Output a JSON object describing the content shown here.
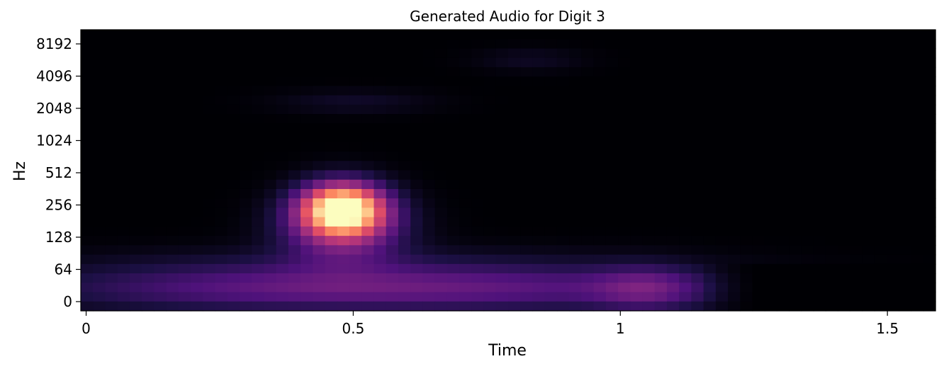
{
  "chart_data": {
    "type": "heatmap",
    "title": "Generated Audio for Digit 3",
    "xlabel": "Time",
    "ylabel": "Hz",
    "x_scale": "linear",
    "y_scale": "log-like (mel)",
    "xlim": [
      -0.01,
      1.59
    ],
    "x_ticks": [
      {
        "value": 0,
        "label": "0"
      },
      {
        "value": 0.5,
        "label": "0.5"
      },
      {
        "value": 1,
        "label": "1"
      },
      {
        "value": 1.5,
        "label": "1.5"
      }
    ],
    "y_ticks": [
      "0",
      "64",
      "128",
      "256",
      "512",
      "1024",
      "2048",
      "4096",
      "8192"
    ],
    "colormap": "magma",
    "grid": false,
    "legend": "none",
    "blobs": [
      {
        "t": 0.48,
        "band": 2.9,
        "st": 0.055,
        "sb": 0.55,
        "amp": 1.0
      },
      {
        "t": 0.48,
        "band": 2.2,
        "st": 0.08,
        "sb": 0.7,
        "amp": 0.35
      },
      {
        "t": 0.3,
        "band": 0.4,
        "st": 0.3,
        "sb": 0.5,
        "amp": 0.22
      },
      {
        "t": 0.8,
        "band": 0.4,
        "st": 0.3,
        "sb": 0.5,
        "amp": 0.22
      },
      {
        "t": 1.05,
        "band": 0.4,
        "st": 0.07,
        "sb": 0.5,
        "amp": 0.2
      },
      {
        "t": 0.5,
        "band": 1.2,
        "st": 0.35,
        "sb": 0.4,
        "amp": 0.07
      },
      {
        "t": 0.5,
        "band": 6.2,
        "st": 0.1,
        "sb": 0.25,
        "amp": 0.07
      },
      {
        "t": 0.83,
        "band": 7.5,
        "st": 0.07,
        "sb": 0.25,
        "amp": 0.06
      }
    ]
  }
}
